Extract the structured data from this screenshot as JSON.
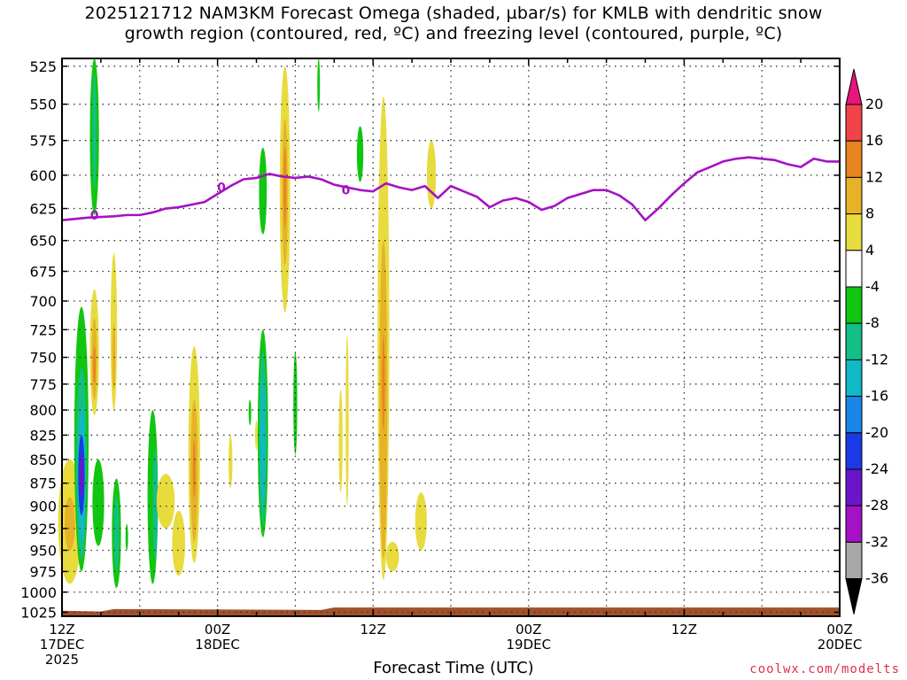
{
  "title": {
    "line1": "2025121712 NAM3KM Forecast Omega (shaded, µbar/s) for KMLB with dendritic snow",
    "line2": "growth region (contoured, red, ºC) and freezing level (contoured, purple, ºC)"
  },
  "credit": "coolwx.com/modelts",
  "chart_data": {
    "type": "heatmap",
    "xlabel": "Forecast Time (UTC)",
    "x_ticks": [
      {
        "hour": 0,
        "l1": "12Z",
        "l2": "17DEC",
        "l3": "2025"
      },
      {
        "hour": 12,
        "l1": "00Z",
        "l2": "18DEC",
        "l3": ""
      },
      {
        "hour": 24,
        "l1": "12Z",
        "l2": "",
        "l3": ""
      },
      {
        "hour": 36,
        "l1": "00Z",
        "l2": "19DEC",
        "l3": ""
      },
      {
        "hour": 48,
        "l1": "12Z",
        "l2": "",
        "l3": ""
      },
      {
        "hour": 60,
        "l1": "00Z",
        "l2": "20DEC",
        "l3": ""
      }
    ],
    "x_range_hours": [
      0,
      60
    ],
    "y_ticks": [
      525,
      550,
      575,
      600,
      625,
      650,
      675,
      700,
      725,
      750,
      775,
      800,
      825,
      850,
      875,
      900,
      925,
      950,
      975,
      1000,
      1025
    ],
    "y_range_mb": [
      520,
      1030
    ],
    "y_scale": "log-pressure",
    "grid": true,
    "colorbar": {
      "labels": [
        "20",
        "16",
        "12",
        "8",
        "4",
        "-4",
        "-8",
        "-12",
        "-16",
        "-20",
        "-24",
        "-28",
        "-32",
        "-36"
      ],
      "colors": [
        "#e8157a",
        "#f2424a",
        "#e8841e",
        "#e6b227",
        "#e8db3e",
        "#ffffff",
        "#11c611",
        "#13bf86",
        "#11b8c6",
        "#1a86e8",
        "#1a3ae6",
        "#6a14cc",
        "#a512c4",
        "#a8a8a8",
        "#000000"
      ]
    },
    "freezing_level": {
      "label": "0",
      "color": "#a512c4",
      "points": [
        [
          0,
          634
        ],
        [
          2,
          632
        ],
        [
          4,
          631
        ],
        [
          5,
          630
        ],
        [
          6,
          630
        ],
        [
          7,
          628
        ],
        [
          8,
          625
        ],
        [
          9,
          624
        ],
        [
          10,
          622
        ],
        [
          11,
          620
        ],
        [
          12,
          614
        ],
        [
          13,
          608
        ],
        [
          14,
          603
        ],
        [
          15,
          602
        ],
        [
          16,
          599
        ],
        [
          17,
          601
        ],
        [
          18,
          602
        ],
        [
          19,
          601
        ],
        [
          20,
          603
        ],
        [
          21,
          607
        ],
        [
          22,
          609
        ],
        [
          23,
          611
        ],
        [
          24,
          612
        ],
        [
          25,
          606
        ],
        [
          26,
          609
        ],
        [
          27,
          611
        ],
        [
          28,
          608
        ],
        [
          29,
          617
        ],
        [
          30,
          608
        ],
        [
          31,
          612
        ],
        [
          32,
          616
        ],
        [
          33,
          624
        ],
        [
          34,
          619
        ],
        [
          35,
          617
        ],
        [
          36,
          620
        ],
        [
          37,
          626
        ],
        [
          38,
          623
        ],
        [
          39,
          617
        ],
        [
          40,
          614
        ],
        [
          41,
          611
        ],
        [
          42,
          611
        ],
        [
          43,
          615
        ],
        [
          44,
          622
        ],
        [
          45,
          634
        ],
        [
          46,
          625
        ],
        [
          47,
          615
        ],
        [
          48,
          606
        ],
        [
          49,
          598
        ],
        [
          50,
          594
        ],
        [
          51,
          590
        ],
        [
          52,
          588
        ],
        [
          53,
          587
        ],
        [
          54,
          588
        ],
        [
          55,
          589
        ],
        [
          56,
          592
        ],
        [
          57,
          594
        ],
        [
          58,
          588
        ],
        [
          59,
          590
        ],
        [
          60,
          590
        ]
      ]
    },
    "omega_cells": [
      {
        "t": 2.5,
        "dt": 0.35,
        "p0": 520,
        "p1": 630,
        "v": -8
      },
      {
        "t": 2.5,
        "dt": 0.15,
        "p0": 530,
        "p1": 610,
        "v": -12
      },
      {
        "t": 0.6,
        "dt": 0.9,
        "p0": 850,
        "p1": 990,
        "v": 4
      },
      {
        "t": 0.6,
        "dt": 0.4,
        "p0": 890,
        "p1": 950,
        "v": 8
      },
      {
        "t": 1.5,
        "dt": 0.55,
        "p0": 705,
        "p1": 975,
        "v": -8
      },
      {
        "t": 1.5,
        "dt": 0.4,
        "p0": 760,
        "p1": 960,
        "v": -12
      },
      {
        "t": 1.5,
        "dt": 0.3,
        "p0": 800,
        "p1": 940,
        "v": -16
      },
      {
        "t": 1.5,
        "dt": 0.25,
        "p0": 825,
        "p1": 910,
        "v": -24
      },
      {
        "t": 1.5,
        "dt": 0.15,
        "p0": 845,
        "p1": 890,
        "v": -28
      },
      {
        "t": 2.5,
        "dt": 0.35,
        "p0": 690,
        "p1": 805,
        "v": 4
      },
      {
        "t": 2.5,
        "dt": 0.2,
        "p0": 715,
        "p1": 790,
        "v": 8
      },
      {
        "t": 2.5,
        "dt": 0.08,
        "p0": 740,
        "p1": 775,
        "v": 12
      },
      {
        "t": 2.8,
        "dt": 0.45,
        "p0": 850,
        "p1": 945,
        "v": -8
      },
      {
        "t": 4.0,
        "dt": 0.25,
        "p0": 660,
        "p1": 800,
        "v": 4
      },
      {
        "t": 4.0,
        "dt": 0.12,
        "p0": 720,
        "p1": 780,
        "v": 8
      },
      {
        "t": 4.2,
        "dt": 0.35,
        "p0": 870,
        "p1": 995,
        "v": -8
      },
      {
        "t": 4.2,
        "dt": 0.2,
        "p0": 890,
        "p1": 975,
        "v": -12
      },
      {
        "t": 5.0,
        "dt": 0.1,
        "p0": 920,
        "p1": 950,
        "v": -8
      },
      {
        "t": 7.0,
        "dt": 0.4,
        "p0": 800,
        "p1": 990,
        "v": -8
      },
      {
        "t": 7.2,
        "dt": 0.2,
        "p0": 840,
        "p1": 960,
        "v": -12
      },
      {
        "t": 8.0,
        "dt": 0.7,
        "p0": 865,
        "p1": 925,
        "v": 4
      },
      {
        "t": 9.0,
        "dt": 0.5,
        "p0": 905,
        "p1": 980,
        "v": 4
      },
      {
        "t": 10.2,
        "dt": 0.45,
        "p0": 740,
        "p1": 965,
        "v": 4
      },
      {
        "t": 10.2,
        "dt": 0.28,
        "p0": 790,
        "p1": 940,
        "v": 8
      },
      {
        "t": 10.2,
        "dt": 0.1,
        "p0": 830,
        "p1": 890,
        "v": 12
      },
      {
        "t": 13.0,
        "dt": 0.15,
        "p0": 825,
        "p1": 880,
        "v": 4
      },
      {
        "t": 14.5,
        "dt": 0.05,
        "p0": 790,
        "p1": 815,
        "v": -8
      },
      {
        "t": 15.0,
        "dt": 0.05,
        "p0": 810,
        "p1": 840,
        "v": 4
      },
      {
        "t": 15.5,
        "dt": 0.3,
        "p0": 580,
        "p1": 645,
        "v": -8
      },
      {
        "t": 15.5,
        "dt": 0.4,
        "p0": 725,
        "p1": 935,
        "v": -8
      },
      {
        "t": 15.5,
        "dt": 0.28,
        "p0": 745,
        "p1": 920,
        "v": -12
      },
      {
        "t": 15.5,
        "dt": 0.18,
        "p0": 770,
        "p1": 900,
        "v": -16
      },
      {
        "t": 17.2,
        "dt": 0.4,
        "p0": 525,
        "p1": 710,
        "v": 4
      },
      {
        "t": 17.2,
        "dt": 0.22,
        "p0": 560,
        "p1": 670,
        "v": 8
      },
      {
        "t": 17.2,
        "dt": 0.1,
        "p0": 580,
        "p1": 640,
        "v": 12
      },
      {
        "t": 18.0,
        "dt": 0.15,
        "p0": 745,
        "p1": 845,
        "v": -8
      },
      {
        "t": 19.8,
        "dt": 0.1,
        "p0": 520,
        "p1": 555,
        "v": -8
      },
      {
        "t": 21.5,
        "dt": 0.15,
        "p0": 780,
        "p1": 885,
        "v": 4
      },
      {
        "t": 22.0,
        "dt": 0.12,
        "p0": 730,
        "p1": 900,
        "v": 4
      },
      {
        "t": 23.0,
        "dt": 0.25,
        "p0": 565,
        "p1": 605,
        "v": -8
      },
      {
        "t": 24.8,
        "dt": 0.45,
        "p0": 545,
        "p1": 985,
        "v": 4
      },
      {
        "t": 24.8,
        "dt": 0.3,
        "p0": 650,
        "p1": 960,
        "v": 8
      },
      {
        "t": 24.8,
        "dt": 0.08,
        "p0": 730,
        "p1": 820,
        "v": 12
      },
      {
        "t": 25.5,
        "dt": 0.5,
        "p0": 940,
        "p1": 975,
        "v": 4
      },
      {
        "t": 27.7,
        "dt": 0.45,
        "p0": 885,
        "p1": 950,
        "v": 4
      },
      {
        "t": 28.5,
        "dt": 0.35,
        "p0": 575,
        "p1": 625,
        "v": 4
      }
    ],
    "ground": {
      "color": "#a0522d",
      "p_top": [
        [
          0,
          1023
        ],
        [
          3,
          1024
        ],
        [
          4,
          1021
        ],
        [
          20,
          1022
        ],
        [
          21,
          1019
        ],
        [
          60,
          1019
        ]
      ]
    }
  }
}
